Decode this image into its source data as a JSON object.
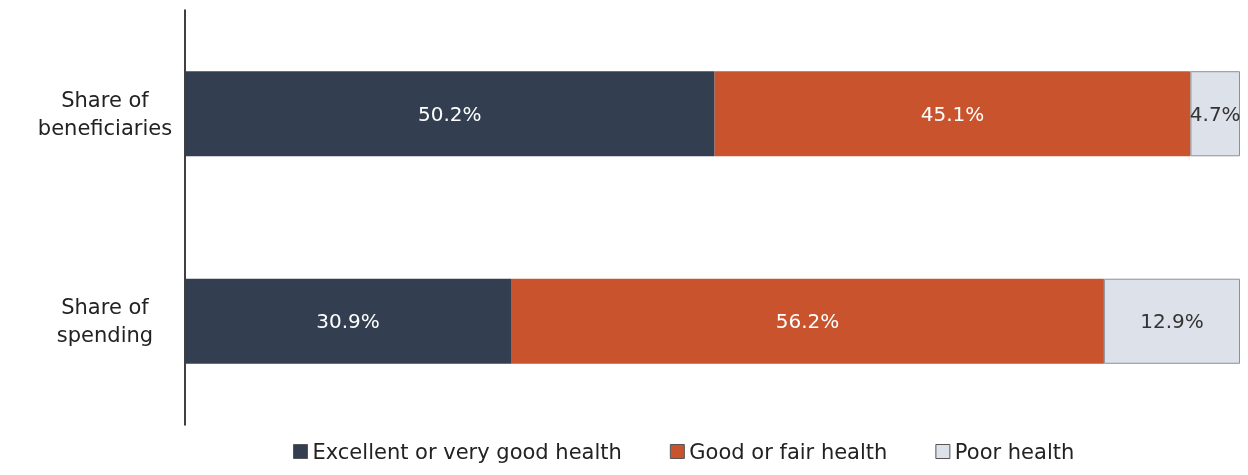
{
  "chart_data": {
    "type": "bar",
    "orientation": "horizontal",
    "stacked": true,
    "categories": [
      "Share of\nbeneficiaries",
      "Share of\nspending"
    ],
    "xlim": [
      0,
      100
    ],
    "legend": "bottom",
    "grid": false,
    "series": [
      {
        "name": "Excellent or very good health",
        "color": "#333f50",
        "values": [
          50.2,
          30.9
        ],
        "value_labels": [
          "50.2%",
          "30.9%"
        ]
      },
      {
        "name": "Good or fair health",
        "color": "#c8532d",
        "values": [
          45.1,
          56.2
        ],
        "value_labels": [
          "45.1%",
          "56.2%"
        ]
      },
      {
        "name": "Poor health",
        "color": "#dde1ea",
        "values": [
          4.7,
          12.9
        ],
        "value_labels": [
          "4.7%",
          "12.9%"
        ]
      }
    ]
  }
}
